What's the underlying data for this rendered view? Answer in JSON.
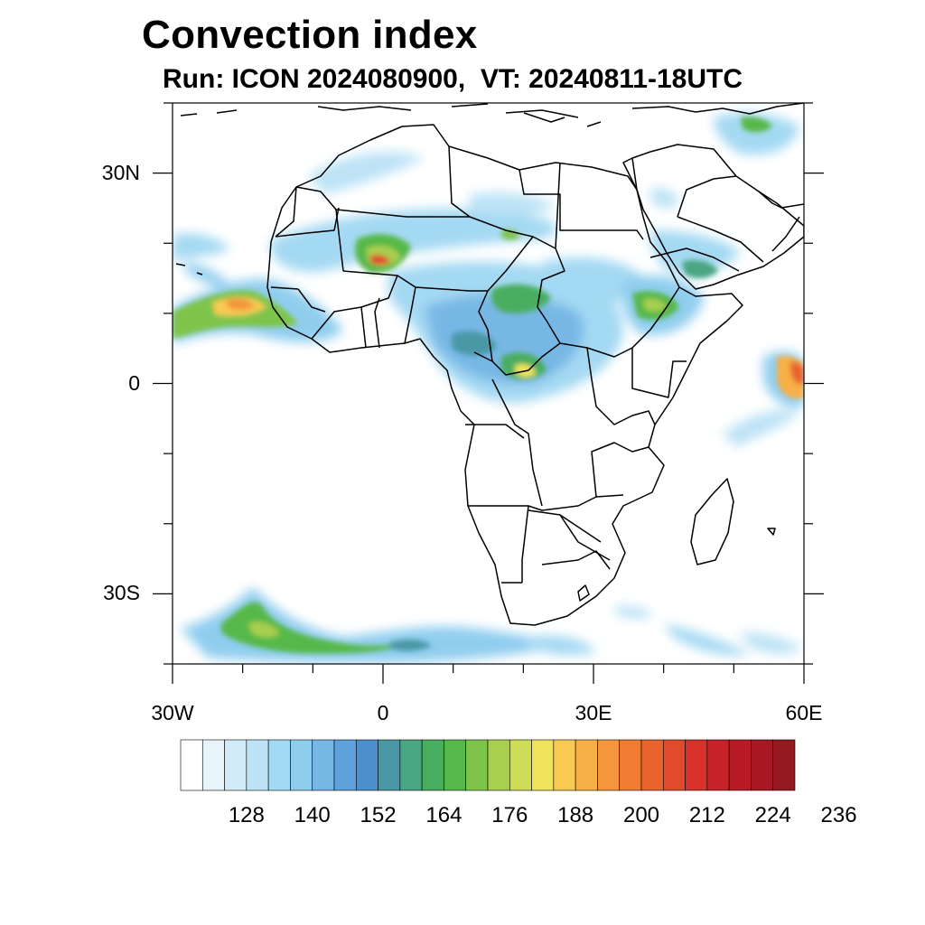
{
  "title": "Convection index",
  "subtitle": "Run: ICON 2024080900,  VT: 20240811-18UTC",
  "map": {
    "extent": {
      "lon_min": -30,
      "lon_max": 60,
      "lat_min": -40,
      "lat_max": 40
    },
    "lat_ticks": [
      {
        "value": 30,
        "label": "30N"
      },
      {
        "value": 0,
        "label": "0"
      },
      {
        "value": -30,
        "label": "30S"
      }
    ],
    "lon_ticks": [
      {
        "value": -30,
        "label": "30W"
      },
      {
        "value": 0,
        "label": "0"
      },
      {
        "value": 30,
        "label": "30E"
      },
      {
        "value": 60,
        "label": "60E"
      }
    ],
    "minor_tick_step_deg": 10,
    "field": "convection index",
    "features": [
      {
        "name": "west-african-monsoon-band",
        "lon": -26,
        "lat": 10,
        "level": 190
      },
      {
        "name": "mali-core",
        "lon": 0,
        "lat": 18,
        "level": 215
      },
      {
        "name": "central-africa-core",
        "lon": 20,
        "lat": 2,
        "level": 185
      },
      {
        "name": "ethiopia-core",
        "lon": 38,
        "lat": 10,
        "level": 172
      },
      {
        "name": "somali-sea-core",
        "lon": 59,
        "lat": 1,
        "level": 200
      },
      {
        "name": "southern-ocean-band",
        "lon": -20,
        "lat": -36,
        "level": 175
      }
    ]
  },
  "colorbar": {
    "labels": [
      "128",
      "140",
      "152",
      "164",
      "176",
      "188",
      "200",
      "212",
      "224",
      "236"
    ],
    "colors": [
      "#ffffff",
      "#e8f4fb",
      "#d2ebf8",
      "#bde3f6",
      "#a4d9f3",
      "#8fcdef",
      "#77b7e5",
      "#5fa1db",
      "#4b8fcc",
      "#4a98a6",
      "#4aa582",
      "#48ad5f",
      "#56b84a",
      "#7ec44b",
      "#a8cf4f",
      "#cfdc55",
      "#f0e35b",
      "#f7ca52",
      "#f7b045",
      "#f5953c",
      "#f07c33",
      "#ea632d",
      "#e14a2b",
      "#d73129",
      "#c82228",
      "#b81b25",
      "#a81822",
      "#961820"
    ]
  }
}
